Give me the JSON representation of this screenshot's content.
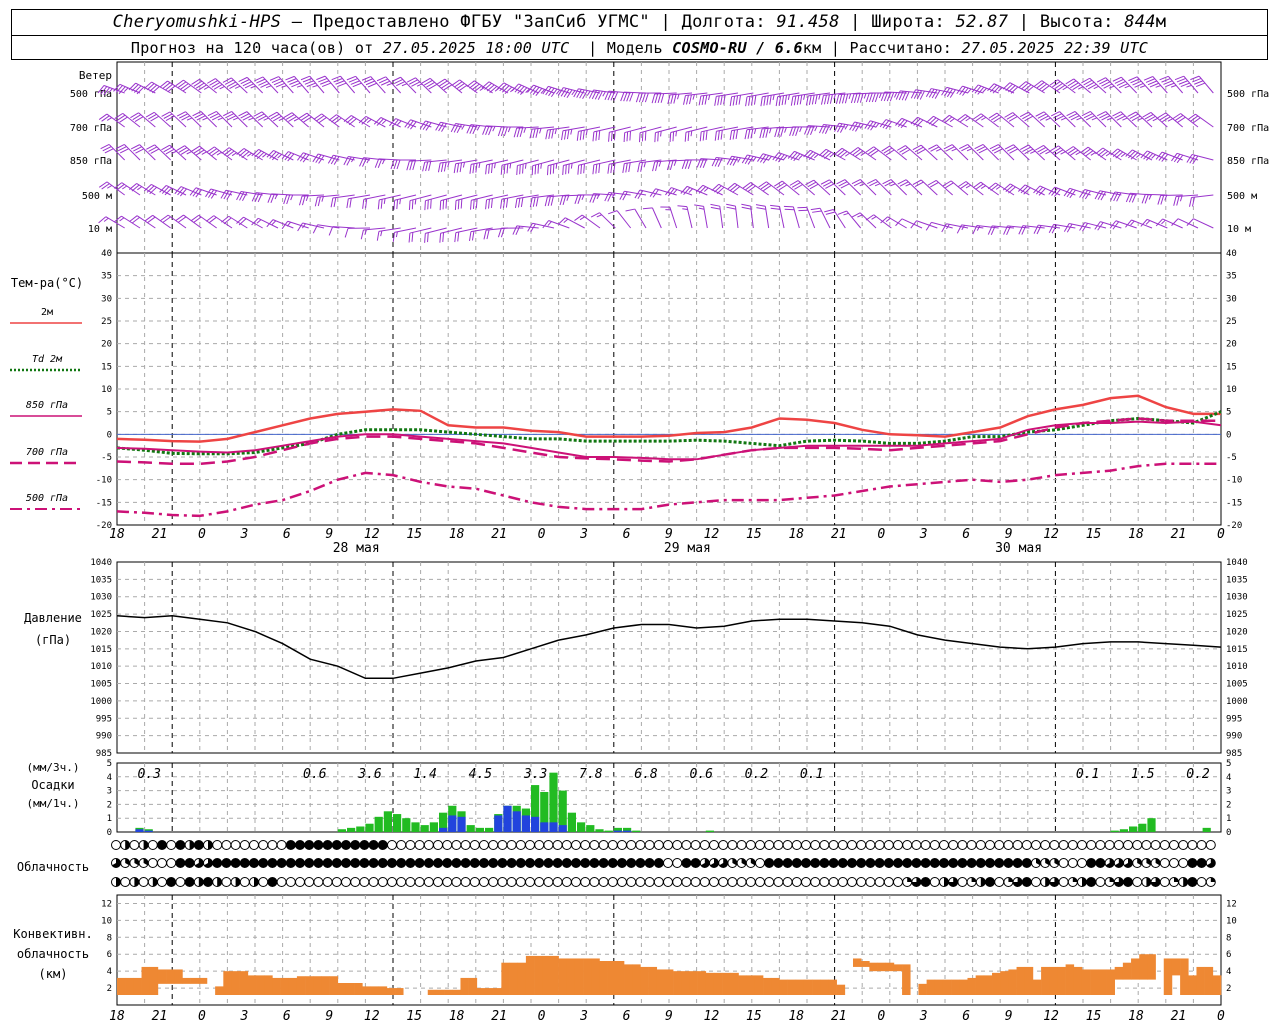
{
  "header": {
    "station": "Cheryomushki-HPS",
    "provided_by": "Предоставлено ФГБУ \"ЗапСиб УГМС\"",
    "lon_label": "Долгота:",
    "lon": "91.458",
    "lat_label": "Широта:",
    "lat": "52.87",
    "alt_label": "Высота:",
    "alt": "844",
    "alt_unit": "м",
    "forecast_label": "Прогноз на 120 часа(ов) от",
    "forecast_start": "27.05.2025 18:00 UTC",
    "model_label": "Модель",
    "model": "COSMO-RU / 6.6",
    "model_unit": "км",
    "computed_label": "Рассчитано:",
    "computed": "27.05.2025 22:39 UTC",
    "sep": "|"
  },
  "time_axis": {
    "hour_ticks": [
      "18",
      "21",
      "0",
      "3",
      "6",
      "9",
      "12",
      "15",
      "18",
      "21",
      "0",
      "3",
      "6",
      "9",
      "12",
      "15",
      "18",
      "21",
      "0",
      "3",
      "6",
      "9",
      "12",
      "15",
      "18",
      "21",
      "0"
    ],
    "day_labels": [
      "28 мая",
      "29 мая",
      "30 мая"
    ]
  },
  "wind": {
    "title": "Ветер",
    "levels": [
      "500 гПа",
      "700 гПа",
      "850 гПа",
      "500 м",
      "10  м"
    ],
    "color": "#9933cc"
  },
  "temperature": {
    "title": "Тем-ра(°C)",
    "y_ticks": [
      "40",
      "35",
      "30",
      "25",
      "20",
      "15",
      "10",
      "5",
      "0",
      "-5",
      "-10",
      "-15",
      "-20"
    ],
    "legend": [
      {
        "label": "2м",
        "color": "#ee4444",
        "style": "solid"
      },
      {
        "label": "Td  2м",
        "color": "#117711",
        "style": "dotted"
      },
      {
        "label": "850 гПа",
        "color": "#cc1177",
        "style": "solid"
      },
      {
        "label": "700 гПа",
        "color": "#cc1177",
        "style": "dashed"
      },
      {
        "label": "500 гПа",
        "color": "#cc1177",
        "style": "dashdot"
      }
    ]
  },
  "pressure": {
    "title": "Давление",
    "unit": "(гПа)",
    "y_ticks": [
      "1040",
      "1035",
      "1030",
      "1025",
      "1020",
      "1015",
      "1010",
      "1005",
      "1000",
      "995",
      "990",
      "985"
    ]
  },
  "precip": {
    "unit3": "(мм/3ч.)",
    "title": "Осадки",
    "unit1": "(мм/1ч.)",
    "y_ticks": [
      "5",
      "4",
      "3",
      "2",
      "1",
      "0"
    ],
    "totals": [
      "0.3",
      "0.6",
      "3.6",
      "1.4",
      "4.5",
      "3.3",
      "7.8",
      "6.8",
      "0.6",
      "0.2",
      "0.1",
      "0.1",
      "1.5",
      "0.2"
    ]
  },
  "cloud": {
    "title": "Облачность"
  },
  "convective": {
    "title1": "Конвективн.",
    "title2": "облачность",
    "unit": "(км)",
    "y_ticks": [
      "12",
      "10",
      "8",
      "6",
      "4",
      "2"
    ]
  },
  "chart_data": [
    {
      "type": "line",
      "title": "Тем-ра(°C)",
      "x_hours": [
        0,
        3,
        6,
        9,
        12,
        15,
        18,
        21,
        24,
        27,
        30,
        33,
        36,
        39,
        42,
        45,
        48,
        51,
        54,
        57,
        60,
        63,
        66,
        69,
        72,
        75,
        78,
        81,
        84,
        87,
        90,
        93,
        96,
        99,
        102,
        105,
        108,
        111,
        114,
        117,
        120
      ],
      "ylim": [
        -20,
        40
      ],
      "series": [
        {
          "name": "2м",
          "values": [
            -1,
            -1.2,
            -1.5,
            -1.6,
            -1,
            0.5,
            2,
            3.5,
            4.5,
            5,
            5.5,
            5.2,
            2,
            1.5,
            1.5,
            0.8,
            0.5,
            -0.5,
            -0.5,
            -0.5,
            -0.3,
            0.3,
            0.5,
            1.5,
            3.5,
            3.2,
            2.5,
            1,
            0,
            -0.2,
            -0.5,
            0.5,
            1.5,
            4,
            5.5,
            6.5,
            8,
            8.5,
            6,
            4.5,
            4.5
          ]
        },
        {
          "name": "Td  2м",
          "values": [
            -3,
            -3.5,
            -4.2,
            -4.3,
            -4.3,
            -4,
            -3,
            -2,
            0,
            1,
            1,
            1,
            0.5,
            0,
            -0.5,
            -1,
            -1,
            -1.5,
            -1.5,
            -1.5,
            -1.5,
            -1.3,
            -1.5,
            -2,
            -2.5,
            -1.5,
            -1.3,
            -1.5,
            -2,
            -2,
            -1.5,
            -0.5,
            -0.5,
            0.5,
            1,
            2,
            3,
            3.5,
            3,
            2.5,
            5
          ]
        },
        {
          "name": "850 гПа",
          "values": [
            -3,
            -3.2,
            -3.5,
            -3.8,
            -4,
            -3.5,
            -2.5,
            -1.5,
            -0.5,
            0,
            0,
            -0.5,
            -1,
            -1.5,
            -2,
            -3,
            -4,
            -5,
            -5,
            -5.2,
            -5.5,
            -5.5,
            -4.5,
            -3.5,
            -3,
            -2.5,
            -2.5,
            -2.5,
            -2.5,
            -2.5,
            -2,
            -1.5,
            -1,
            1,
            2,
            2.5,
            2.5,
            2.8,
            2.5,
            2.8,
            2
          ]
        },
        {
          "name": "700 гПа",
          "values": [
            -6,
            -6.2,
            -6.5,
            -6.5,
            -6,
            -5,
            -3.5,
            -2,
            -1,
            -0.5,
            -0.5,
            -1,
            -1.5,
            -2,
            -3,
            -4,
            -5,
            -5.3,
            -5.5,
            -5.8,
            -6,
            -5.5,
            -4.5,
            -3.5,
            -3,
            -3,
            -3,
            -3.2,
            -3.5,
            -3,
            -2.5,
            -2,
            -1.5,
            0,
            1.5,
            2.5,
            3,
            3.5,
            3,
            3,
            3
          ]
        },
        {
          "name": "500 гПа",
          "values": [
            -17,
            -17.3,
            -17.8,
            -18,
            -17,
            -15.5,
            -14.5,
            -12.5,
            -10,
            -8.5,
            -9,
            -10.5,
            -11.5,
            -12,
            -13.5,
            -15,
            -16,
            -16.5,
            -16.5,
            -16.5,
            -15.5,
            -15,
            -14.5,
            -14.5,
            -14.5,
            -14,
            -13.5,
            -12.5,
            -11.5,
            -11,
            -10.5,
            -10,
            -10.5,
            -10,
            -9,
            -8.5,
            -8,
            -7,
            -6.5,
            -6.5,
            -6.5
          ]
        }
      ]
    },
    {
      "type": "line",
      "title": "Давление",
      "x_hours": [
        0,
        3,
        6,
        9,
        12,
        15,
        18,
        21,
        24,
        27,
        30,
        33,
        36,
        39,
        42,
        45,
        48,
        51,
        54,
        57,
        60,
        63,
        66,
        69,
        72,
        75,
        78,
        81,
        84,
        87,
        90,
        93,
        96,
        99,
        102,
        105,
        108,
        111,
        114,
        117,
        120
      ],
      "ylim": [
        985,
        1040
      ],
      "series": [
        {
          "name": "",
          "values": [
            1024.5,
            1024,
            1024.5,
            1023.5,
            1022.5,
            1020,
            1016.5,
            1012,
            1010,
            1006.5,
            1006.5,
            1008,
            1009.5,
            1011.5,
            1012.5,
            1015,
            1017.5,
            1019,
            1021,
            1022,
            1022,
            1021,
            1021.5,
            1023,
            1023.5,
            1023.5,
            1023,
            1022.5,
            1021.5,
            1019,
            1017.5,
            1016.5,
            1015.5,
            1015,
            1015.5,
            1016.5,
            1017,
            1017,
            1016.5,
            1016,
            1015.5
          ]
        }
      ]
    },
    {
      "type": "bar",
      "title": "Осадки",
      "x_hours_step": 1,
      "ylim": [
        0,
        5
      ],
      "series": [
        {
          "name": "liquid",
          "color": "#22bb22",
          "values": [
            0,
            0,
            0.3,
            0.2,
            0,
            0,
            0,
            0,
            0,
            0,
            0,
            0,
            0,
            0,
            0,
            0,
            0,
            0,
            0,
            0,
            0,
            0,
            0,
            0,
            0.2,
            0.3,
            0.4,
            0.6,
            1.1,
            1.5,
            1.3,
            1.0,
            0.7,
            0.5,
            0.7,
            1.4,
            1.9,
            1.5,
            0.5,
            0.3,
            0.3,
            1.3,
            1.9,
            1.9,
            1.7,
            3.4,
            2.9,
            4.3,
            3.0,
            1.4,
            0.7,
            0.5,
            0.2,
            0.1,
            0.3,
            0.3,
            0.1,
            0,
            0,
            0,
            0,
            0,
            0,
            0,
            0.1,
            0,
            0,
            0,
            0,
            0,
            0,
            0,
            0,
            0,
            0,
            0,
            0,
            0,
            0,
            0,
            0,
            0,
            0,
            0,
            0,
            0,
            0,
            0,
            0,
            0,
            0,
            0,
            0,
            0,
            0,
            0,
            0,
            0,
            0,
            0,
            0,
            0,
            0,
            0,
            0,
            0,
            0,
            0,
            0.1,
            0.2,
            0.4,
            0.6,
            1.0,
            0,
            0,
            0,
            0,
            0,
            0.3
          ]
        },
        {
          "name": "solid",
          "color": "#2244dd",
          "values": [
            0,
            0,
            0.2,
            0.1,
            0,
            0,
            0,
            0,
            0,
            0,
            0,
            0,
            0,
            0,
            0,
            0,
            0,
            0,
            0,
            0,
            0,
            0,
            0,
            0,
            0,
            0,
            0,
            0,
            0,
            0,
            0,
            0,
            0,
            0,
            0,
            0.3,
            1.2,
            1.1,
            0,
            0,
            0,
            1.2,
            1.9,
            1.5,
            1.2,
            1.1,
            0.7,
            0.7,
            0.5,
            0,
            0,
            0,
            0,
            0,
            0.1,
            0.1,
            0,
            0,
            0,
            0,
            0,
            0,
            0,
            0,
            0,
            0,
            0,
            0,
            0,
            0,
            0,
            0,
            0,
            0,
            0,
            0,
            0,
            0,
            0,
            0,
            0,
            0,
            0,
            0,
            0,
            0,
            0,
            0,
            0,
            0,
            0,
            0,
            0,
            0,
            0,
            0,
            0,
            0,
            0,
            0,
            0,
            0,
            0,
            0,
            0,
            0,
            0,
            0,
            0,
            0,
            0,
            0,
            0,
            0,
            0,
            0,
            0,
            0,
            0,
            0,
            0,
            0
          ]
        }
      ]
    },
    {
      "type": "bar",
      "title": "Конвективн. облачность",
      "x_hours_step": 1,
      "ylim": [
        0,
        13
      ],
      "series": [
        {
          "name": "base",
          "values": [
            2,
            2,
            2,
            2,
            2,
            2.5,
            2.5,
            2.5,
            2.5,
            2.5,
            2.5,
            2.5,
            2,
            2,
            2,
            2,
            2,
            2,
            2,
            2,
            2,
            2,
            2,
            2,
            2,
            2,
            2,
            2,
            2,
            2,
            2,
            1.5,
            1.5,
            1.5,
            1.5,
            1.5,
            1.5,
            1.5,
            1.5,
            1.5,
            1.5,
            1.5,
            1.5,
            1.5,
            1.5,
            1.5,
            1.5,
            1.5,
            1.5,
            1.5,
            1.5,
            1.5,
            1.5,
            1.5,
            1.5,
            1.5,
            1.5,
            1.5,
            1.5,
            2,
            2,
            2,
            2,
            2,
            2,
            2,
            2,
            2,
            2,
            2,
            2,
            2,
            2,
            2,
            2,
            2,
            2,
            2,
            2,
            2,
            2,
            2,
            2,
            2,
            2,
            2,
            2,
            2,
            2,
            4.5,
            4.5,
            4.5,
            4,
            4,
            4,
            4,
            1.5,
            2,
            2,
            2,
            2,
            2,
            2,
            2,
            2,
            2,
            2,
            2,
            2,
            2,
            2,
            2,
            2,
            2,
            2,
            2,
            2,
            2,
            2,
            2,
            2,
            2,
            3,
            3,
            3,
            3,
            3,
            3,
            2,
            3.5
          ]
        },
        {
          "name": "top",
          "values": [
            3.2,
            3.2,
            3.2,
            4.5,
            4.5,
            4.2,
            4.2,
            4.2,
            3.2,
            3.2,
            3.2,
            2.2,
            2.2,
            4,
            4,
            4,
            3.5,
            3.5,
            3.5,
            3.2,
            3.2,
            3.2,
            3.4,
            3.4,
            3.4,
            3.4,
            3.4,
            2.6,
            2.6,
            2.6,
            2.2,
            2.2,
            2.2,
            2,
            2,
            1.5,
            1.5,
            1.5,
            1.8,
            1.8,
            1.8,
            1.8,
            3.2,
            3.2,
            2,
            2,
            2,
            5,
            5,
            5,
            5.8,
            5.8,
            5.8,
            5.8,
            5.5,
            5.5,
            5.5,
            5.5,
            5.5,
            5.2,
            5.2,
            5.2,
            4.8,
            4.8,
            4.5,
            4.5,
            4.2,
            4.2,
            4,
            4,
            4,
            4,
            3.8,
            3.8,
            3.8,
            3.8,
            3.5,
            3.5,
            3.5,
            3.2,
            3.2,
            3,
            3,
            3,
            3,
            3,
            3,
            3,
            2.4,
            2.2,
            5.5,
            5.2,
            5,
            5,
            5,
            4.8,
            4.8,
            2,
            2.5,
            3,
            3,
            3,
            3,
            3,
            3.2,
            3.5,
            3.5,
            3.8,
            4,
            4.2,
            4.5,
            4.5,
            3,
            4.5,
            4.5,
            4.5,
            4.8,
            4.5,
            4.2,
            4.2,
            4.2,
            4.2,
            4.5,
            5,
            5.5,
            6,
            6,
            3,
            5.5,
            5.5,
            5.5,
            3.5,
            4.5,
            4.5,
            3.5
          ]
        }
      ]
    }
  ]
}
